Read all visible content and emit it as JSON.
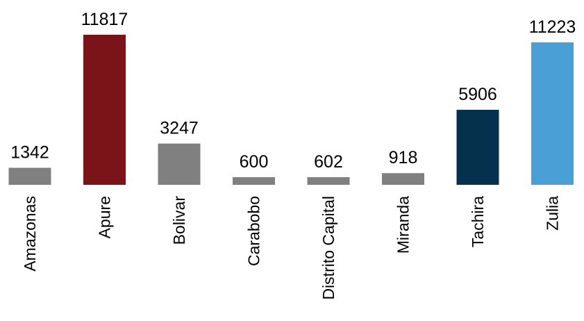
{
  "chart_data": {
    "type": "bar",
    "categories": [
      "Amazonas",
      "Apure",
      "Bolivar",
      "Carabobo",
      "Distrito Capital",
      "Miranda",
      "Tachira",
      "Zulia"
    ],
    "values": [
      1342,
      11817,
      3247,
      600,
      602,
      918,
      5906,
      11223
    ],
    "value_labels": [
      "1342",
      "11817",
      "3247",
      "600",
      "602",
      "918",
      "5906",
      "11223"
    ],
    "bar_colors": [
      "#808080",
      "#7b1418",
      "#808080",
      "#808080",
      "#808080",
      "#808080",
      "#06314c",
      "#4aa0d6"
    ],
    "ylim": [
      0,
      11817
    ],
    "grid": false,
    "legend": "none",
    "title": "",
    "xlabel": "",
    "ylabel": ""
  }
}
